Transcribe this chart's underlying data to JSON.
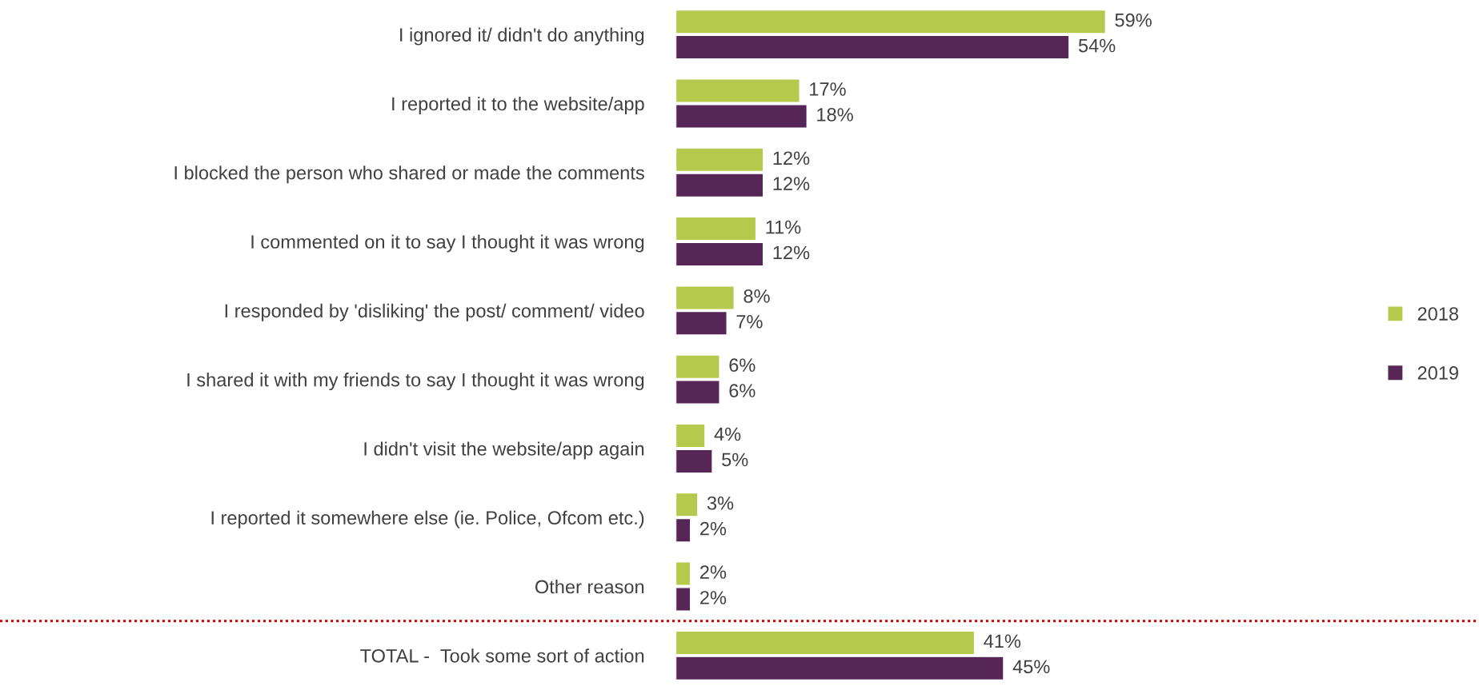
{
  "chart_data": {
    "type": "bar",
    "orientation": "horizontal",
    "categories": [
      "I ignored it/ didn't do anything",
      "I reported it to the website/app",
      "I blocked the person who shared or made the comments",
      "I commented on it to say I thought it was wrong",
      "I responded by 'disliking' the post/ comment/ video",
      "I shared it with my friends to say I thought it was wrong",
      "I didn't visit the website/app again",
      "I reported it somewhere else (ie. Police, Ofcom etc.)",
      "Other reason",
      "TOTAL -  Took some sort of action"
    ],
    "series": [
      {
        "name": "2018",
        "color": "#b5c94c",
        "values": [
          59,
          17,
          12,
          11,
          8,
          6,
          4,
          3,
          2,
          41
        ],
        "value_labels": [
          "59%",
          "17%",
          "12%",
          "11%",
          "8%",
          "6%",
          "4%",
          "3%",
          "2%",
          "41%"
        ]
      },
      {
        "name": "2019",
        "color": "#552656",
        "values": [
          54,
          18,
          12,
          12,
          7,
          6,
          5,
          2,
          2,
          45
        ],
        "value_labels": [
          "54%",
          "18%",
          "12%",
          "12%",
          "7%",
          "6%",
          "5%",
          "2%",
          "2%",
          "45%"
        ]
      }
    ],
    "legend": "right",
    "grid": false
  }
}
